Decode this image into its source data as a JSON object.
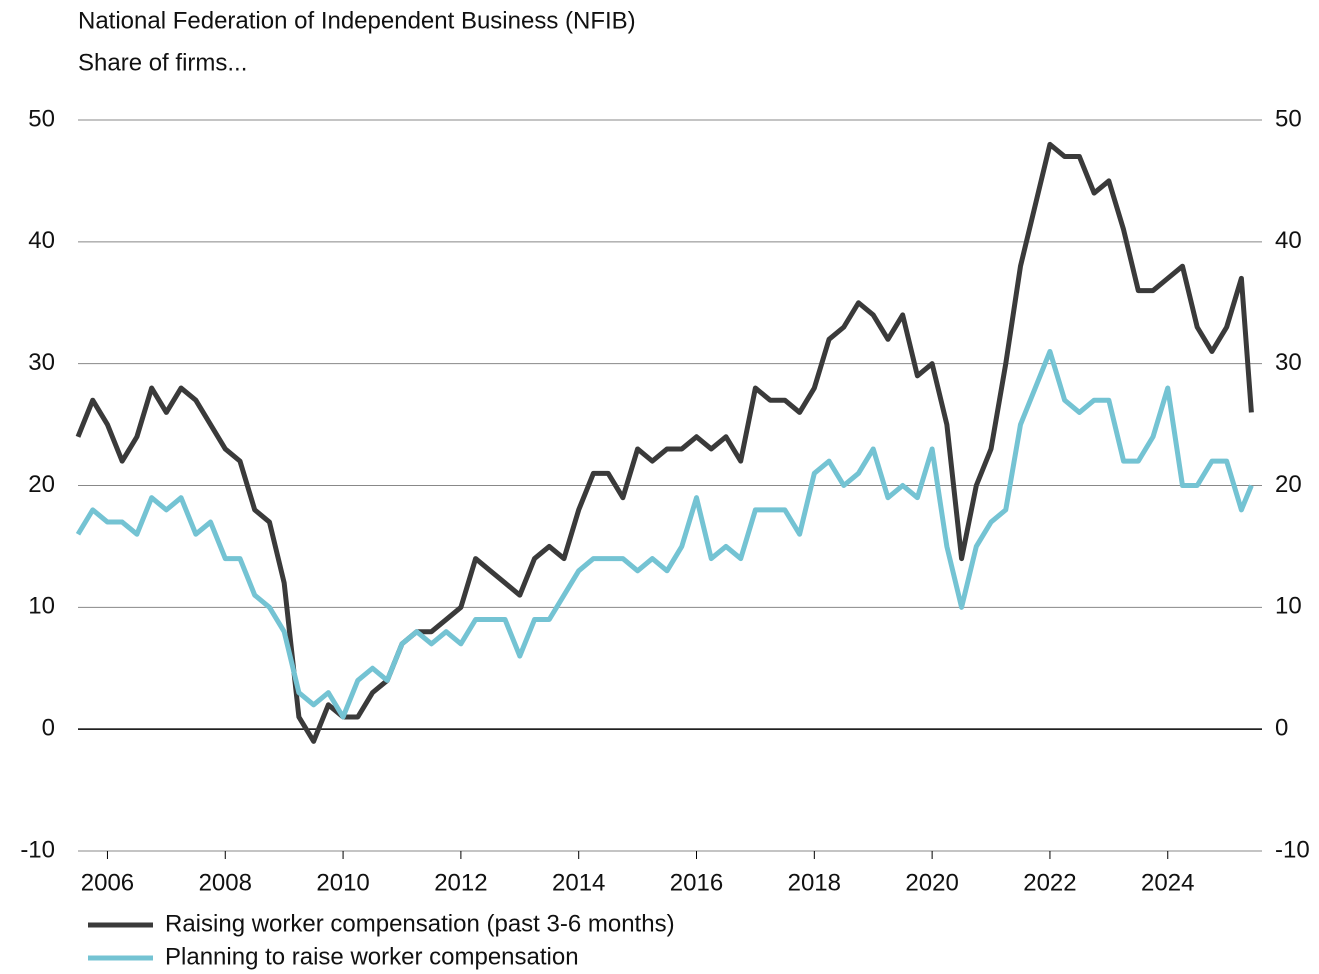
{
  "chart_data": {
    "type": "line",
    "title": "National Federation of Independent Business (NFIB)",
    "subtitle": "Share of firms...",
    "x": [
      2005.5,
      2005.75,
      2006,
      2006.25,
      2006.5,
      2006.75,
      2007,
      2007.25,
      2007.5,
      2007.75,
      2008,
      2008.25,
      2008.5,
      2008.75,
      2009,
      2009.25,
      2009.5,
      2009.75,
      2010,
      2010.25,
      2010.5,
      2010.75,
      2011,
      2011.25,
      2011.5,
      2011.75,
      2012,
      2012.25,
      2012.5,
      2012.75,
      2013,
      2013.25,
      2013.5,
      2013.75,
      2014,
      2014.25,
      2014.5,
      2014.75,
      2015,
      2015.25,
      2015.5,
      2015.75,
      2016,
      2016.25,
      2016.5,
      2016.75,
      2017,
      2017.25,
      2017.5,
      2017.75,
      2018,
      2018.25,
      2018.5,
      2018.75,
      2019,
      2019.25,
      2019.5,
      2019.75,
      2020,
      2020.25,
      2020.5,
      2020.75,
      2021,
      2021.25,
      2021.5,
      2021.75,
      2022,
      2022.25,
      2022.5,
      2022.75,
      2023,
      2023.25,
      2023.5,
      2023.75,
      2024,
      2024.25,
      2024.5,
      2024.75,
      2025,
      2025.25,
      2025.42
    ],
    "series": [
      {
        "name": "Raising worker compensation (past 3-6 months)",
        "color": "#3a3a3a",
        "values": [
          24,
          27,
          25,
          22,
          24,
          28,
          26,
          28,
          27,
          25,
          23,
          22,
          18,
          17,
          12,
          1,
          -1,
          2,
          1,
          1,
          3,
          4,
          7,
          8,
          8,
          9,
          10,
          14,
          13,
          12,
          11,
          14,
          15,
          14,
          18,
          21,
          21,
          19,
          23,
          22,
          23,
          23,
          24,
          23,
          24,
          22,
          28,
          27,
          27,
          26,
          28,
          32,
          33,
          35,
          34,
          32,
          34,
          29,
          30,
          25,
          14,
          20,
          23,
          30,
          38,
          43,
          48,
          47,
          47,
          44,
          45,
          41,
          36,
          36,
          37,
          38,
          33,
          31,
          33,
          37,
          26
        ]
      },
      {
        "name": "Planning to raise worker compensation",
        "color": "#74c3d3",
        "values": [
          16,
          18,
          17,
          17,
          16,
          19,
          18,
          19,
          16,
          17,
          14,
          14,
          11,
          10,
          8,
          3,
          2,
          3,
          1,
          4,
          5,
          4,
          7,
          8,
          7,
          8,
          7,
          9,
          9,
          9,
          6,
          9,
          9,
          11,
          13,
          14,
          14,
          14,
          13,
          14,
          13,
          15,
          19,
          14,
          15,
          14,
          18,
          18,
          18,
          16,
          21,
          22,
          20,
          21,
          23,
          19,
          20,
          19,
          23,
          15,
          10,
          15,
          17,
          18,
          25,
          28,
          31,
          27,
          26,
          27,
          27,
          22,
          22,
          24,
          28,
          20,
          20,
          22,
          22,
          18,
          20
        ]
      }
    ],
    "xlim": [
      2005.5,
      2025.6
    ],
    "xticks": [
      2006,
      2008,
      2010,
      2012,
      2014,
      2016,
      2018,
      2020,
      2022,
      2024
    ],
    "ylim": [
      -10,
      50
    ],
    "yticks": [
      -10,
      0,
      10,
      20,
      30,
      40,
      50
    ],
    "grid": true
  }
}
